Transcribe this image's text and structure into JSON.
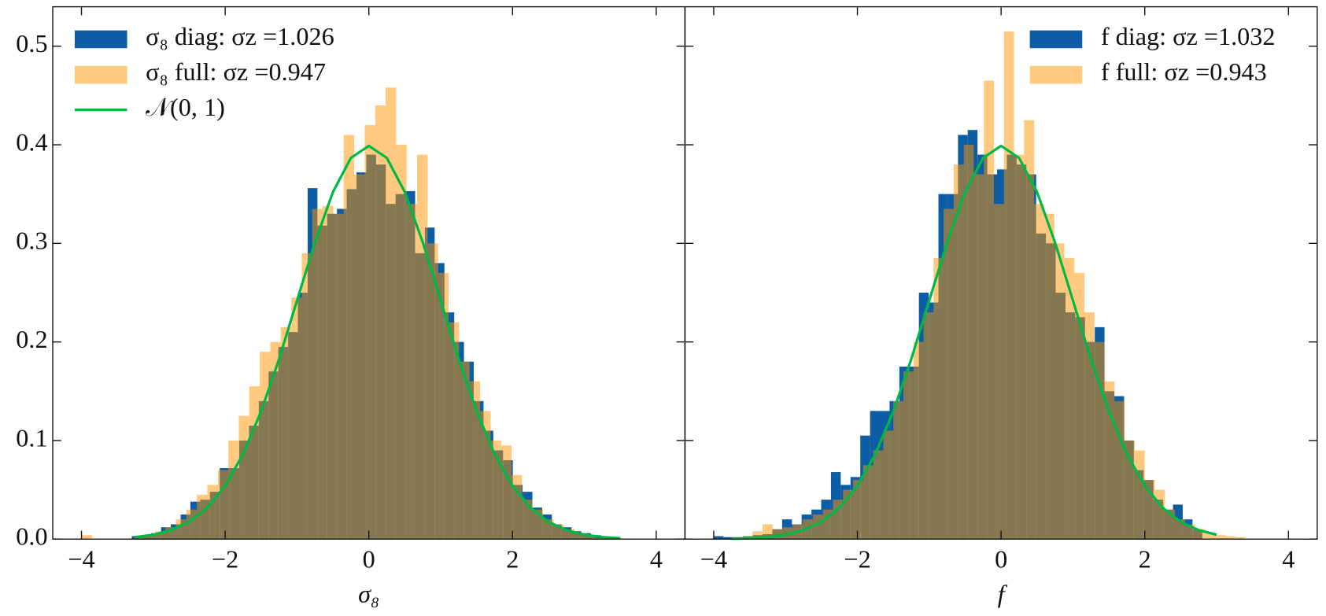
{
  "chart_data": [
    {
      "type": "histogram",
      "xlabel": "σ₈",
      "xlim": [
        -4.4,
        4.4
      ],
      "ylim": [
        0,
        0.54
      ],
      "xticks": [
        {
          "value": -4,
          "label": "−4"
        },
        {
          "value": -2,
          "label": "−2"
        },
        0,
        2,
        4
      ],
      "yticks": [
        {
          "value": 0,
          "label": "0.0"
        },
        0.1,
        0.2,
        0.3,
        0.4,
        0.5
      ],
      "legend": "upper left",
      "series": [
        {
          "name": "σ₈ diag: σz =1.026",
          "color": "#0c5da5",
          "alpha": 1,
          "bins": [
            -3.3,
            -3.164,
            -3.028,
            -2.892,
            -2.756,
            -2.62,
            -2.484,
            -2.348,
            -2.212,
            -2.076,
            -1.94,
            -1.804,
            -1.668,
            -1.532,
            -1.396,
            -1.26,
            -1.124,
            -0.988,
            -0.852,
            -0.716,
            -0.58,
            -0.444,
            -0.308,
            -0.172,
            -0.036,
            0.1,
            0.236,
            0.372,
            0.508,
            0.644,
            0.78,
            0.916,
            1.052,
            1.188,
            1.324,
            1.46,
            1.596,
            1.732,
            1.868,
            2.004,
            2.14,
            2.276,
            2.412,
            2.548,
            2.684,
            2.82,
            2.956,
            3.092,
            3.228,
            3.364,
            3.5
          ],
          "values": [
            0.003,
            0.004,
            0.006,
            0.012,
            0.015,
            0.025,
            0.038,
            0.04,
            0.048,
            0.072,
            0.072,
            0.1,
            0.115,
            0.14,
            0.17,
            0.195,
            0.21,
            0.25,
            0.356,
            0.318,
            0.33,
            0.335,
            0.355,
            0.372,
            0.39,
            0.38,
            0.34,
            0.35,
            0.353,
            0.29,
            0.316,
            0.28,
            0.23,
            0.2,
            0.18,
            0.14,
            0.11,
            0.09,
            0.08,
            0.055,
            0.048,
            0.032,
            0.025,
            0.015,
            0.012,
            0.008,
            0.006,
            0.004,
            0.002,
            0.002
          ]
        },
        {
          "name": "σ₈ full: σz =0.947",
          "color": "#ff9500",
          "alpha": 0.5,
          "bins": [
            -4,
            -3.854,
            -3.708,
            -3.562,
            -3.416,
            -3.27,
            -3.124,
            -2.978,
            -2.832,
            -2.686,
            -2.54,
            -2.394,
            -2.248,
            -2.102,
            -1.956,
            -1.81,
            -1.664,
            -1.518,
            -1.372,
            -1.226,
            -1.08,
            -0.934,
            -0.788,
            -0.642,
            -0.496,
            -0.35,
            -0.204,
            -0.058,
            0.088,
            0.234,
            0.38,
            0.526,
            0.672,
            0.818,
            0.964,
            1.11,
            1.256,
            1.402,
            1.548,
            1.694,
            1.84,
            1.986,
            2.132,
            2.278,
            2.424,
            2.57,
            2.716,
            2.862,
            3.008,
            3.154,
            3.3
          ],
          "values": [
            0.004,
            0,
            0,
            0,
            0,
            0.002,
            0.004,
            0.008,
            0.012,
            0.02,
            0.03,
            0.045,
            0.055,
            0.07,
            0.1,
            0.125,
            0.155,
            0.19,
            0.2,
            0.215,
            0.245,
            0.29,
            0.335,
            0.338,
            0.33,
            0.41,
            0.37,
            0.42,
            0.44,
            0.458,
            0.4,
            0.34,
            0.39,
            0.3,
            0.27,
            0.22,
            0.18,
            0.16,
            0.13,
            0.1,
            0.095,
            0.065,
            0.04,
            0.03,
            0.02,
            0.015,
            0.01,
            0.006,
            0.003,
            0.001
          ]
        }
      ],
      "line": {
        "name": "𝒩(0, 1)",
        "color": "#00b945",
        "x": [
          -3.25,
          -3,
          -2.75,
          -2.5,
          -2.25,
          -2,
          -1.75,
          -1.5,
          -1.25,
          -1,
          -0.75,
          -0.5,
          -0.25,
          0,
          0.25,
          0.5,
          0.75,
          1,
          1.25,
          1.5,
          1.75,
          2,
          2.25,
          2.5,
          2.75,
          3,
          3.25,
          3.5
        ],
        "values": [
          0.002,
          0.0044,
          0.0091,
          0.0175,
          0.0317,
          0.054,
          0.0863,
          0.1295,
          0.1826,
          0.242,
          0.3011,
          0.3521,
          0.3867,
          0.3989,
          0.3867,
          0.3521,
          0.3011,
          0.242,
          0.1826,
          0.1295,
          0.0863,
          0.054,
          0.0317,
          0.0175,
          0.0091,
          0.0044,
          0.002,
          0.0009
        ]
      }
    },
    {
      "type": "histogram",
      "xlabel": "f",
      "xlim": [
        -4.4,
        4.4
      ],
      "ylim": [
        0,
        0.54
      ],
      "xticks": [
        {
          "value": -4,
          "label": "−4"
        },
        {
          "value": -2,
          "label": "−2"
        },
        0,
        2,
        4
      ],
      "legend": "upper right",
      "series": [
        {
          "name": "f diag: σz =1.032",
          "color": "#0c5da5",
          "alpha": 1,
          "bins": [
            -4,
            -3.864,
            -3.728,
            -3.592,
            -3.456,
            -3.32,
            -3.184,
            -3.048,
            -2.912,
            -2.776,
            -2.64,
            -2.504,
            -2.368,
            -2.232,
            -2.096,
            -1.96,
            -1.824,
            -1.688,
            -1.552,
            -1.416,
            -1.28,
            -1.144,
            -1.008,
            -0.872,
            -0.736,
            -0.6,
            -0.464,
            -0.328,
            -0.192,
            -0.056,
            0.08,
            0.216,
            0.352,
            0.488,
            0.624,
            0.76,
            0.896,
            1.032,
            1.168,
            1.304,
            1.44,
            1.576,
            1.712,
            1.848,
            1.984,
            2.12,
            2.256,
            2.392,
            2.528,
            2.664,
            2.8
          ],
          "values": [
            0.003,
            0.002,
            0.002,
            0.003,
            0.004,
            0.005,
            0.01,
            0.02,
            0.015,
            0.025,
            0.03,
            0.04,
            0.068,
            0.055,
            0.063,
            0.105,
            0.13,
            0.13,
            0.14,
            0.175,
            0.175,
            0.25,
            0.24,
            0.35,
            0.35,
            0.41,
            0.415,
            0.39,
            0.37,
            0.375,
            0.39,
            0.38,
            0.37,
            0.31,
            0.3,
            0.25,
            0.23,
            0.225,
            0.2,
            0.215,
            0.15,
            0.145,
            0.1,
            0.07,
            0.06,
            0.04,
            0.03,
            0.035,
            0.02,
            0.01
          ]
        },
        {
          "name": "f full: σz =0.943",
          "color": "#ff9500",
          "alpha": 0.5,
          "bins": [
            -3.6,
            -3.46,
            -3.32,
            -3.18,
            -3.04,
            -2.9,
            -2.76,
            -2.62,
            -2.48,
            -2.34,
            -2.2,
            -2.06,
            -1.92,
            -1.78,
            -1.64,
            -1.5,
            -1.36,
            -1.22,
            -1.08,
            -0.94,
            -0.8,
            -0.66,
            -0.52,
            -0.38,
            -0.24,
            -0.1,
            0.04,
            0.18,
            0.32,
            0.46,
            0.6,
            0.74,
            0.88,
            1.02,
            1.16,
            1.3,
            1.44,
            1.58,
            1.72,
            1.86,
            2.0,
            2.14,
            2.28,
            2.42,
            2.56,
            2.7,
            2.84,
            2.98,
            3.12,
            3.26,
            3.4
          ],
          "values": [
            0.003,
            0.008,
            0.015,
            0.01,
            0.012,
            0.015,
            0.02,
            0.025,
            0.03,
            0.04,
            0.05,
            0.06,
            0.075,
            0.09,
            0.11,
            0.14,
            0.17,
            0.2,
            0.23,
            0.285,
            0.335,
            0.38,
            0.4,
            0.37,
            0.465,
            0.34,
            0.515,
            0.39,
            0.425,
            0.34,
            0.33,
            0.3,
            0.285,
            0.27,
            0.23,
            0.2,
            0.16,
            0.14,
            0.1,
            0.09,
            0.06,
            0.05,
            0.03,
            0.02,
            0.015,
            0.01,
            0.006,
            0.004,
            0.003,
            0.002
          ]
        }
      ],
      "line": {
        "color": "#00b945",
        "x": [
          -3.75,
          -3.5,
          -3.25,
          -3,
          -2.75,
          -2.5,
          -2.25,
          -2,
          -1.75,
          -1.5,
          -1.25,
          -1,
          -0.75,
          -0.5,
          -0.25,
          0,
          0.25,
          0.5,
          0.75,
          1,
          1.25,
          1.5,
          1.75,
          2,
          2.25,
          2.5,
          2.75,
          3
        ],
        "values": [
          0.0004,
          0.0009,
          0.002,
          0.0044,
          0.0091,
          0.0175,
          0.0317,
          0.054,
          0.0863,
          0.1295,
          0.1826,
          0.242,
          0.3011,
          0.3521,
          0.3867,
          0.3989,
          0.3867,
          0.3521,
          0.3011,
          0.242,
          0.1826,
          0.1295,
          0.0863,
          0.054,
          0.0317,
          0.0175,
          0.0091,
          0.0044
        ]
      }
    }
  ]
}
